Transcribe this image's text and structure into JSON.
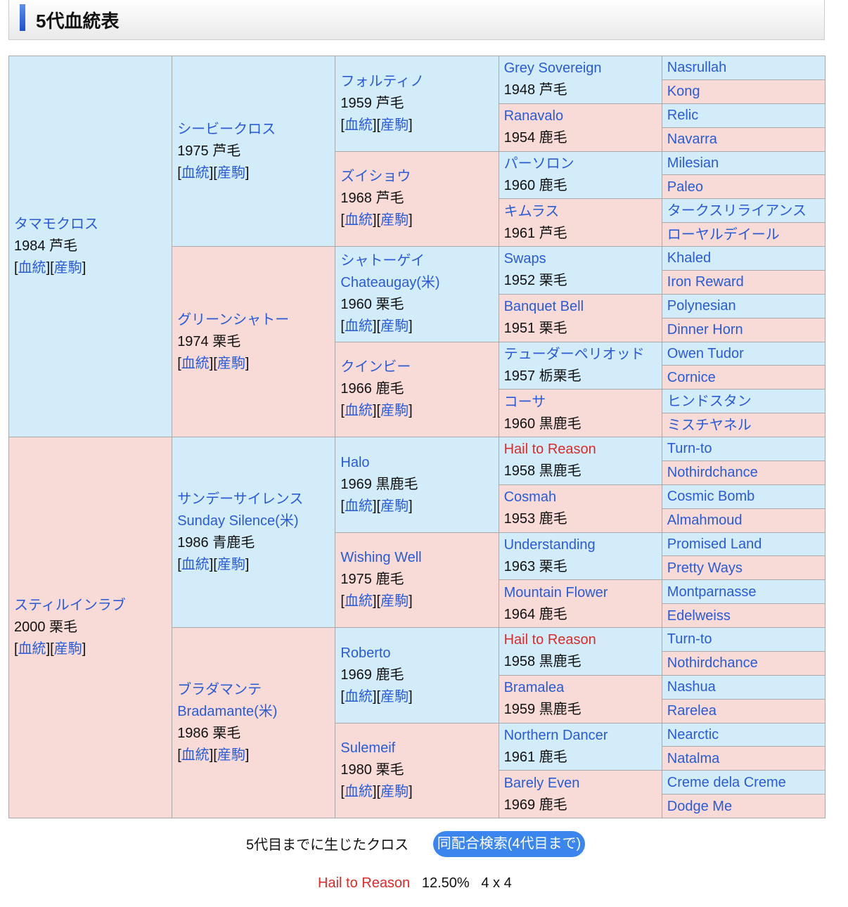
{
  "title": "5代血統表",
  "colors": {
    "male": "#d3ecf9",
    "female": "#f8dbd6",
    "link": "#2a5bd7",
    "inbred": "#d92b2b"
  },
  "links": {
    "pedigree": "血統",
    "offspring": "産駒"
  },
  "gen1": [
    {
      "name": "タマモクロス",
      "info": "1984 芦毛",
      "sex": "male"
    },
    {
      "name": "スティルインラブ",
      "info": "2000 栗毛",
      "sex": "female"
    }
  ],
  "gen2": [
    {
      "name": "シービークロス",
      "info": "1975 芦毛",
      "sex": "male"
    },
    {
      "name": "グリーンシャトー",
      "info": "1974 栗毛",
      "sex": "female"
    },
    {
      "name": "サンデーサイレンス",
      "alt": "Sunday Silence(米)",
      "info": "1986 青鹿毛",
      "sex": "male"
    },
    {
      "name": "ブラダマンテ",
      "alt": "Bradamante(米)",
      "info": "1986 栗毛",
      "sex": "female"
    }
  ],
  "gen3": [
    {
      "name": "フォルティノ",
      "info": "1959 芦毛",
      "sex": "male"
    },
    {
      "name": "ズイショウ",
      "info": "1968 芦毛",
      "sex": "female"
    },
    {
      "name": "シャトーゲイ",
      "alt": "Chateaugay(米)",
      "info": "1960 栗毛",
      "sex": "male"
    },
    {
      "name": "クインビー",
      "info": "1966 鹿毛",
      "sex": "female"
    },
    {
      "name": "Halo",
      "info": "1969 黒鹿毛",
      "sex": "male"
    },
    {
      "name": "Wishing Well",
      "info": "1975 鹿毛",
      "sex": "female"
    },
    {
      "name": "Roberto",
      "info": "1969 鹿毛",
      "sex": "male"
    },
    {
      "name": "Sulemeif",
      "info": "1980 栗毛",
      "sex": "female"
    }
  ],
  "gen4": [
    {
      "name": "Grey Sovereign",
      "info": "1948 芦毛",
      "sex": "male"
    },
    {
      "name": "Ranavalo",
      "info": "1954 鹿毛",
      "sex": "female"
    },
    {
      "name": "パーソロン",
      "info": "1960 鹿毛",
      "sex": "male"
    },
    {
      "name": "キムラス",
      "info": "1961 芦毛",
      "sex": "female"
    },
    {
      "name": "Swaps",
      "info": "1952 栗毛",
      "sex": "male"
    },
    {
      "name": "Banquet Bell",
      "info": "1951 栗毛",
      "sex": "female"
    },
    {
      "name": "テューダーペリオッド",
      "info": "1957 栃栗毛",
      "sex": "male"
    },
    {
      "name": "コーサ",
      "info": "1960 黒鹿毛",
      "sex": "female"
    },
    {
      "name": "Hail to Reason",
      "info": "1958 黒鹿毛",
      "sex": "male",
      "inbred": true
    },
    {
      "name": "Cosmah",
      "info": "1953 鹿毛",
      "sex": "female"
    },
    {
      "name": "Understanding",
      "info": "1963 栗毛",
      "sex": "male"
    },
    {
      "name": "Mountain Flower",
      "info": "1964 鹿毛",
      "sex": "female"
    },
    {
      "name": "Hail to Reason",
      "info": "1958 黒鹿毛",
      "sex": "male",
      "inbred": true
    },
    {
      "name": "Bramalea",
      "info": "1959 黒鹿毛",
      "sex": "female"
    },
    {
      "name": "Northern Dancer",
      "info": "1961 鹿毛",
      "sex": "male"
    },
    {
      "name": "Barely Even",
      "info": "1969 鹿毛",
      "sex": "female"
    }
  ],
  "gen5": [
    "Nasrullah",
    "Kong",
    "Relic",
    "Navarra",
    "Milesian",
    "Paleo",
    "タークスリライアンス",
    "ローヤルデイール",
    "Khaled",
    "Iron Reward",
    "Polynesian",
    "Dinner Horn",
    "Owen Tudor",
    "Cornice",
    "ヒンドスタン",
    "ミスチヤネル",
    "Turn-to",
    "Nothirdchance",
    "Cosmic Bomb",
    "Almahmoud",
    "Promised Land",
    "Pretty Ways",
    "Montparnasse",
    "Edelweiss",
    "Turn-to",
    "Nothirdchance",
    "Nashua",
    "Rarelea",
    "Nearctic",
    "Natalma",
    "Creme dela Creme",
    "Dodge Me"
  ],
  "footer": {
    "cross_label": "5代目までに生じたクロス",
    "search_button": "同配合検索(4代目まで)",
    "cross_name": "Hail to Reason",
    "cross_pct": "12.50%",
    "cross_gen": "4 x 4"
  }
}
